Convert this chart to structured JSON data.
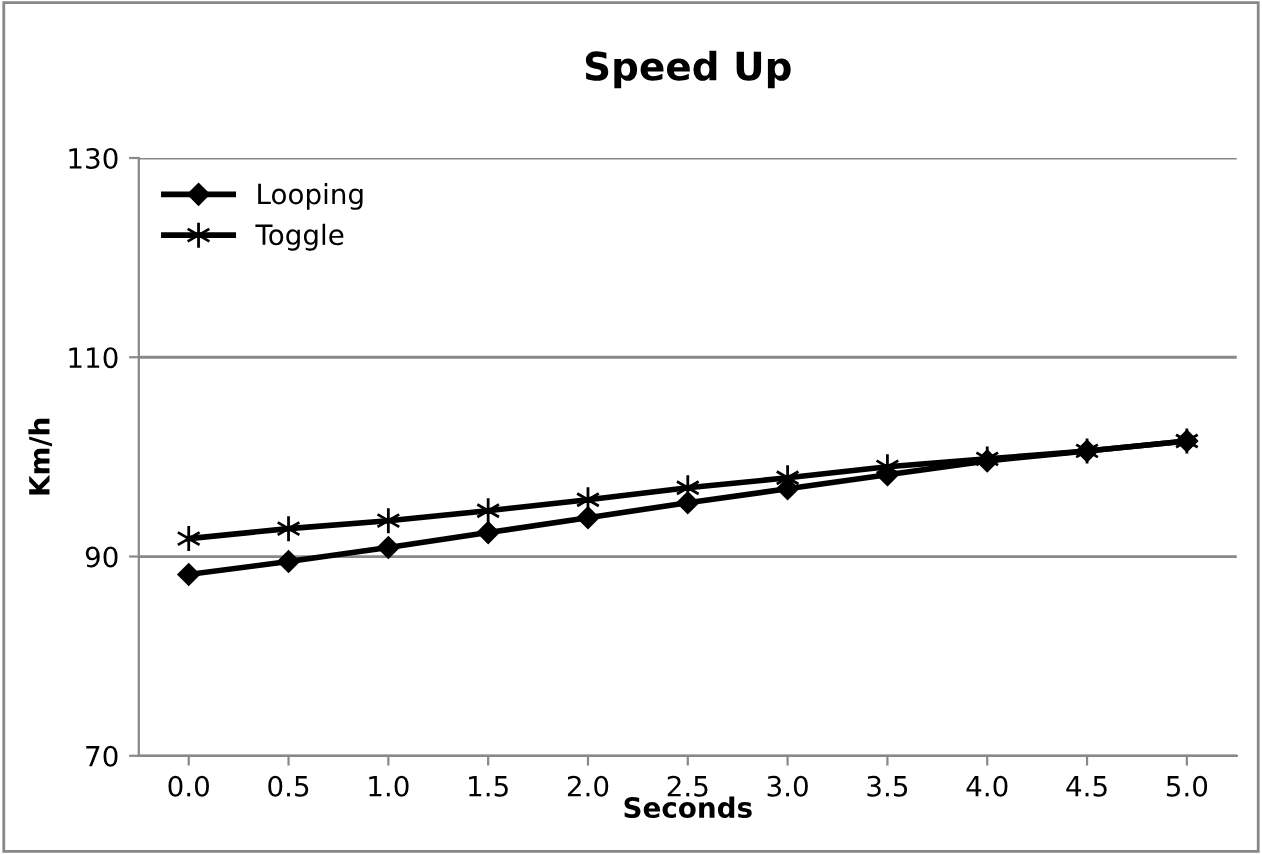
{
  "chart_data": {
    "type": "line",
    "title": "Speed Up",
    "xlabel": "Seconds",
    "ylabel": "Km/h",
    "categories": [
      "0.0",
      "0.5",
      "1.0",
      "1.5",
      "2.0",
      "2.5",
      "3.0",
      "3.5",
      "4.0",
      "4.5",
      "5.0"
    ],
    "series": [
      {
        "name": "Looping",
        "color": "#000000",
        "marker": "diamond",
        "values": [
          88.2,
          89.5,
          90.9,
          92.4,
          93.9,
          95.4,
          96.8,
          98.2,
          99.6,
          100.6,
          101.6
        ]
      },
      {
        "name": "Toggle",
        "color": "#000000",
        "marker": "cross",
        "values": [
          91.8,
          92.8,
          93.6,
          94.6,
          95.7,
          96.9,
          97.9,
          99.0,
          99.8,
          100.6,
          101.6
        ]
      }
    ],
    "ylim": [
      70,
      130
    ],
    "yticks": [
      70,
      90,
      110,
      130
    ],
    "grid": "y",
    "legend": "top left",
    "line_style": "solid"
  }
}
